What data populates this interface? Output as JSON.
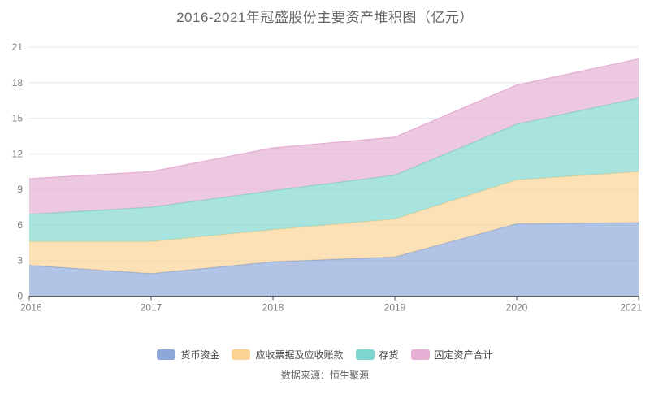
{
  "title": "2016-2021年冠盛股份主要资产堆积图（亿元）",
  "source_note": "数据来源：恒生聚源",
  "chart_data": {
    "type": "area",
    "stacked": true,
    "title": "2016-2021年冠盛股份主要资产堆积图（亿元）",
    "categories": [
      "2016",
      "2017",
      "2018",
      "2019",
      "2020",
      "2021"
    ],
    "series": [
      {
        "key": "monetary-funds",
        "name": "货币资金",
        "color": "#8DA8D8",
        "fill": "#ADBFE3",
        "values": [
          2.6,
          1.9,
          2.9,
          3.3,
          6.1,
          6.2
        ]
      },
      {
        "key": "receivables",
        "name": "应收票据及应收账款",
        "color": "#FAD394",
        "fill": "#FCE3BA",
        "values": [
          2.0,
          2.7,
          2.7,
          3.2,
          3.7,
          4.3
        ]
      },
      {
        "key": "inventory",
        "name": "存货",
        "color": "#7FD6CE",
        "fill": "#A7E0DB",
        "values": [
          2.3,
          2.9,
          3.3,
          3.7,
          4.7,
          6.2
        ]
      },
      {
        "key": "fixed-assets",
        "name": "固定资产合计",
        "color": "#E5AED3",
        "fill": "#EECBE2",
        "values": [
          3.0,
          3.0,
          3.6,
          3.2,
          3.3,
          3.3
        ]
      }
    ],
    "stack_totals": [
      9.9,
      10.5,
      12.5,
      13.4,
      17.8,
      20.0
    ],
    "xlabel": "",
    "ylabel": "",
    "y_ticks": [
      0,
      3,
      6,
      9,
      12,
      15,
      18,
      21
    ],
    "ylim": [
      0,
      21
    ],
    "grid": true,
    "legend_position": "bottom"
  },
  "colors": {
    "grid_line": "#E2E8F4",
    "axis_line": "#555B63",
    "axis_label": "#7E7E7E",
    "title_text": "#666666",
    "legend_text": "#474747",
    "source_text": "#5E5E5E"
  }
}
